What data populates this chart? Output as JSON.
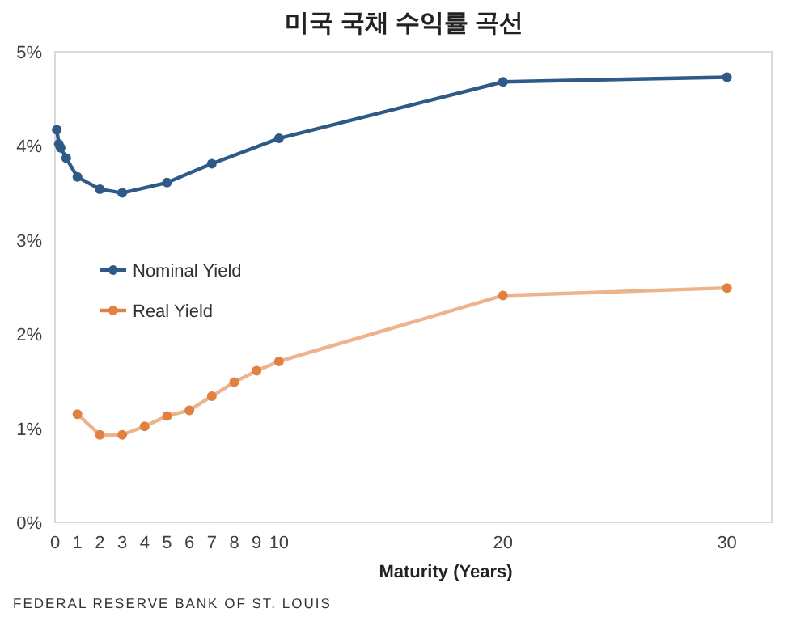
{
  "chart_data": {
    "type": "line",
    "title": "미국 국채 수익률 곡선",
    "xlabel": "Maturity  (Years)",
    "xlim": [
      0,
      32
    ],
    "xticks": [
      0,
      1,
      2,
      3,
      4,
      5,
      6,
      7,
      8,
      9,
      10,
      20,
      30
    ],
    "ylim": [
      0,
      5
    ],
    "yticks": [
      {
        "value": 0,
        "label": "0%"
      },
      {
        "value": 1,
        "label": "1%"
      },
      {
        "value": 2,
        "label": "2%"
      },
      {
        "value": 3,
        "label": "3%"
      },
      {
        "value": 4,
        "label": "4%"
      },
      {
        "value": 5,
        "label": "5%"
      }
    ],
    "grid": false,
    "legend": "left",
    "marker": "circle",
    "line_style": "solid",
    "series": [
      {
        "name": "Nominal Yield",
        "color": "#2e5a88",
        "x": [
          0.08,
          0.17,
          0.25,
          0.5,
          1,
          2,
          3,
          5,
          7,
          10,
          20,
          30
        ],
        "values": [
          4.17,
          4.02,
          3.98,
          3.87,
          3.67,
          3.54,
          3.5,
          3.61,
          3.81,
          4.08,
          4.68,
          4.73
        ]
      },
      {
        "name": "Real Yield",
        "color": "#e0813f",
        "x": [
          1,
          2,
          3,
          4,
          5,
          6,
          7,
          8,
          9,
          10,
          20,
          30
        ],
        "values": [
          1.15,
          0.93,
          0.93,
          1.02,
          1.13,
          1.19,
          1.34,
          1.49,
          1.61,
          1.71,
          2.41,
          2.49
        ]
      }
    ],
    "annotations": [
      "FEDERAL RESERVE BANK OF ST. LOUIS"
    ]
  }
}
